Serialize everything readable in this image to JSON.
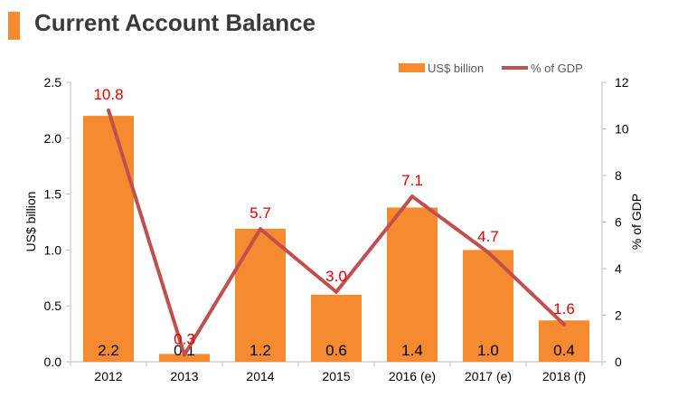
{
  "title": "Current Account Balance",
  "colors": {
    "bar": "#f58a31",
    "line": "#c0504d",
    "line_label": "#e00000",
    "bar_label": "#000000",
    "title_accent": "#f58a31"
  },
  "chart_data": {
    "type": "bar+line",
    "categories": [
      "2012",
      "2013",
      "2014",
      "2015",
      "2016 (e)",
      "2017 (e)",
      "2018 (f)"
    ],
    "series": [
      {
        "name": "US$ billion",
        "type": "bar",
        "axis": "left",
        "values": [
          2.2,
          0.07,
          1.19,
          0.6,
          1.38,
          1.0,
          0.37
        ],
        "labels": [
          "2.2",
          "0.1",
          "1.2",
          "0.6",
          "1.4",
          "1.0",
          "0.4"
        ]
      },
      {
        "name": "% of GDP",
        "type": "line",
        "axis": "right",
        "values": [
          10.8,
          0.3,
          5.7,
          3.0,
          7.1,
          4.7,
          1.6
        ],
        "labels": [
          "10.8",
          "0.3",
          "5.7",
          "3.0",
          "7.1",
          "4.7",
          "1.6"
        ]
      }
    ],
    "ylabel_left": "US$ billion",
    "ylabel_right": "% of GDP",
    "ylim_left": [
      0,
      2.5
    ],
    "ylim_right": [
      0,
      12
    ],
    "yticks_left": [
      "0.0",
      "0.5",
      "1.0",
      "1.5",
      "2.0",
      "2.5"
    ],
    "yticks_right": [
      "0",
      "2",
      "4",
      "6",
      "8",
      "10",
      "12"
    ],
    "legend": "top-right",
    "grid": false
  }
}
